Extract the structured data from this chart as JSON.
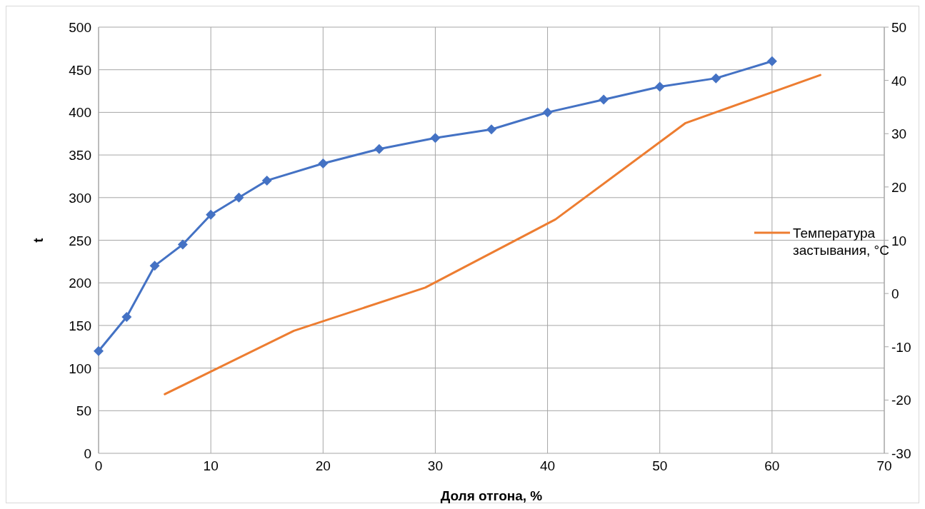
{
  "chart_data": {
    "type": "line",
    "xlabel": "Доля отгона, %",
    "ylabel": "t",
    "xlim": [
      0,
      70
    ],
    "xticks": [
      0,
      10,
      20,
      30,
      40,
      50,
      60,
      70
    ],
    "ylim": [
      0,
      500
    ],
    "yticks": [
      0,
      50,
      100,
      150,
      200,
      250,
      300,
      350,
      400,
      450,
      500
    ],
    "y2lim": [
      -30,
      50
    ],
    "y2ticks": [
      -30,
      -20,
      -10,
      0,
      10,
      20,
      30,
      40,
      50
    ],
    "grid": true,
    "legend": "right",
    "series": [
      {
        "color": "#4472c4",
        "marker": "diamond",
        "x": [
          0,
          2.5,
          5,
          7.5,
          10,
          12.5,
          15,
          20,
          25,
          30,
          35,
          40,
          45,
          50,
          55,
          60
        ],
        "values": [
          120,
          160,
          220,
          245,
          280,
          300,
          320,
          340,
          357,
          370,
          380,
          400,
          415,
          430,
          440,
          460
        ]
      },
      {
        "name": "Температура застывания, °C",
        "color": "#ed7d31",
        "marker": "none",
        "axis": "y2",
        "x": [
          5.9,
          17.4,
          29.1,
          40.7,
          52.3,
          64.3
        ],
        "values": [
          -18.9,
          -7,
          1.1,
          13.9,
          32,
          41
        ]
      }
    ]
  }
}
